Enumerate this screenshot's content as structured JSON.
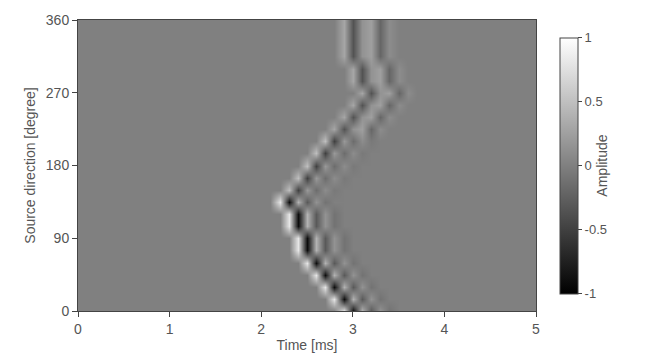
{
  "chart_data": {
    "type": "heatmap",
    "x_label": "Time [ms]",
    "y_label": "Source direction [degree]",
    "colorbar_label": "Amplitude",
    "xlim": [
      0,
      5
    ],
    "xticks": [
      0,
      1,
      2,
      3,
      4,
      5
    ],
    "ylim": [
      0,
      360
    ],
    "yticks": [
      0,
      90,
      180,
      270,
      360
    ],
    "colorbar_range": [
      -1,
      1
    ],
    "colorbar_ticks": [
      -1,
      -0.5,
      0,
      0.5,
      1
    ],
    "x": [
      0,
      0.1,
      0.2,
      0.3,
      0.4,
      0.5,
      0.6,
      0.7,
      0.8,
      0.9,
      1,
      1.1,
      1.2,
      1.3,
      1.4,
      1.5,
      1.6,
      1.7,
      1.8,
      1.9,
      2,
      2.1,
      2.2,
      2.3,
      2.4,
      2.5,
      2.6,
      2.7,
      2.8,
      2.9,
      3,
      3.1,
      3.2,
      3.3,
      3.4,
      3.5,
      3.6,
      3.7,
      3.8,
      3.9,
      4,
      4.1,
      4.2,
      4.3,
      4.4,
      4.5,
      4.6,
      4.7,
      4.8,
      4.9,
      5
    ],
    "y": [
      0,
      15,
      30,
      45,
      60,
      75,
      90,
      105,
      120,
      135,
      150,
      165,
      180,
      195,
      210,
      225,
      240,
      255,
      270,
      285,
      300,
      315,
      330,
      345,
      360
    ],
    "z": [
      [
        0,
        0,
        0,
        0,
        0,
        0,
        0,
        0,
        0,
        0,
        0,
        0,
        0,
        0,
        0,
        0,
        0,
        0,
        0,
        0,
        0,
        0,
        0,
        0,
        0,
        0,
        0,
        0,
        0,
        0.8,
        -0.9,
        0.4,
        -0.3,
        0.15,
        -0.1,
        0,
        0,
        0,
        0,
        0,
        0,
        0,
        0,
        0,
        0,
        0,
        0,
        0,
        0,
        0,
        0
      ],
      [
        0,
        0,
        0,
        0,
        0,
        0,
        0,
        0,
        0,
        0,
        0,
        0,
        0,
        0,
        0,
        0,
        0,
        0,
        0,
        0,
        0,
        0,
        0,
        0,
        0,
        0,
        0,
        0,
        0.8,
        -0.9,
        0.4,
        -0.3,
        0.15,
        -0.1,
        0,
        0,
        0,
        0,
        0,
        0,
        0,
        0,
        0,
        0,
        0,
        0,
        0,
        0,
        0,
        0,
        0
      ],
      [
        0,
        0,
        0,
        0,
        0,
        0,
        0,
        0,
        0,
        0,
        0,
        0,
        0,
        0,
        0,
        0,
        0,
        0,
        0,
        0,
        0,
        0,
        0,
        0,
        0,
        0,
        0,
        0.8,
        -0.9,
        0.4,
        -0.3,
        0.15,
        -0.1,
        0,
        0,
        0,
        0,
        0,
        0,
        0,
        0,
        0,
        0,
        0,
        0,
        0,
        0,
        0,
        0,
        0,
        0
      ],
      [
        0,
        0,
        0,
        0,
        0,
        0,
        0,
        0,
        0,
        0,
        0,
        0,
        0,
        0,
        0,
        0,
        0,
        0,
        0,
        0,
        0,
        0,
        0,
        0,
        0,
        0,
        0.8,
        -0.9,
        0.4,
        -0.3,
        0.15,
        -0.1,
        0,
        0,
        0,
        0,
        0,
        0,
        0,
        0,
        0,
        0,
        0,
        0,
        0,
        0,
        0,
        0,
        0,
        0,
        0
      ],
      [
        0,
        0,
        0,
        0,
        0,
        0,
        0,
        0,
        0,
        0,
        0,
        0,
        0,
        0,
        0,
        0,
        0,
        0,
        0,
        0,
        0,
        0,
        0,
        0,
        0,
        0.8,
        -0.9,
        0.4,
        -0.3,
        0.15,
        -0.1,
        0,
        0,
        0,
        0,
        0,
        0,
        0,
        0,
        0,
        0,
        0,
        0,
        0,
        0,
        0,
        0,
        0,
        0,
        0,
        0
      ],
      [
        0,
        0,
        0,
        0,
        0,
        0,
        0,
        0,
        0,
        0,
        0,
        0,
        0,
        0,
        0,
        0,
        0,
        0,
        0,
        0,
        0,
        0,
        0,
        0,
        0.8,
        -0.9,
        0.4,
        -0.3,
        0.15,
        -0.1,
        0,
        0,
        0,
        0,
        0,
        0,
        0,
        0,
        0,
        0,
        0,
        0,
        0,
        0,
        0,
        0,
        0,
        0,
        0,
        0,
        0
      ],
      [
        0,
        0,
        0,
        0,
        0,
        0,
        0,
        0,
        0,
        0,
        0,
        0,
        0,
        0,
        0,
        0,
        0,
        0,
        0,
        0,
        0,
        0,
        0,
        0,
        0.8,
        -0.9,
        0.4,
        -0.3,
        0.15,
        -0.1,
        0,
        0,
        0,
        0,
        0,
        0,
        0,
        0,
        0,
        0,
        0,
        0,
        0,
        0,
        0,
        0,
        0,
        0,
        0,
        0,
        0
      ],
      [
        0,
        0,
        0,
        0,
        0,
        0,
        0,
        0,
        0,
        0,
        0,
        0,
        0,
        0,
        0,
        0,
        0,
        0,
        0,
        0,
        0,
        0,
        0,
        0.8,
        -0.9,
        0.4,
        -0.3,
        0.15,
        -0.1,
        0,
        0,
        0,
        0,
        0,
        0,
        0,
        0,
        0,
        0,
        0,
        0,
        0,
        0,
        0,
        0,
        0,
        0,
        0,
        0,
        0,
        0
      ],
      [
        0,
        0,
        0,
        0,
        0,
        0,
        0,
        0,
        0,
        0,
        0,
        0,
        0,
        0,
        0,
        0,
        0,
        0,
        0,
        0,
        0,
        0,
        0,
        0.8,
        -0.9,
        0.4,
        -0.3,
        0.15,
        -0.1,
        0,
        0,
        0,
        0,
        0,
        0,
        0,
        0,
        0,
        0,
        0,
        0,
        0,
        0,
        0,
        0,
        0,
        0,
        0,
        0,
        0,
        0
      ],
      [
        0,
        0,
        0,
        0,
        0,
        0,
        0,
        0,
        0,
        0,
        0,
        0,
        0,
        0,
        0,
        0,
        0,
        0,
        0,
        0,
        0,
        0,
        0.8,
        -0.9,
        0.4,
        -0.3,
        0.15,
        -0.1,
        0,
        0,
        0,
        0,
        0,
        0,
        0,
        0,
        0,
        0,
        0,
        0,
        0,
        0,
        0,
        0,
        0,
        0,
        0,
        0,
        0,
        0,
        0
      ],
      [
        0,
        0,
        0,
        0,
        0,
        0,
        0,
        0,
        0,
        0,
        0,
        0,
        0,
        0,
        0,
        0,
        0,
        0,
        0,
        0,
        0,
        0,
        0,
        0.5,
        -0.5,
        0.2,
        -0.15,
        0.1,
        -0.05,
        0,
        0,
        0,
        0,
        0,
        0,
        0,
        0,
        0,
        0,
        0,
        0,
        0,
        0,
        0,
        0,
        0,
        0,
        0,
        0,
        0,
        0
      ],
      [
        0,
        0,
        0,
        0,
        0,
        0,
        0,
        0,
        0,
        0,
        0,
        0,
        0,
        0,
        0,
        0,
        0,
        0,
        0,
        0,
        0,
        0,
        0,
        0,
        0.5,
        -0.5,
        0.2,
        -0.15,
        0.1,
        -0.05,
        0,
        0,
        0,
        0,
        0,
        0,
        0,
        0,
        0,
        0,
        0,
        0,
        0,
        0,
        0,
        0,
        0,
        0,
        0,
        0,
        0
      ],
      [
        0,
        0,
        0,
        0,
        0,
        0,
        0,
        0,
        0,
        0,
        0,
        0,
        0,
        0,
        0,
        0,
        0,
        0,
        0,
        0,
        0,
        0,
        0,
        0,
        0,
        0.5,
        -0.5,
        0.2,
        -0.15,
        0.1,
        -0.05,
        0,
        0,
        0,
        0,
        0,
        0,
        0,
        0,
        0,
        0,
        0,
        0,
        0,
        0,
        0,
        0,
        0,
        0,
        0,
        0
      ],
      [
        0,
        0,
        0,
        0,
        0,
        0,
        0,
        0,
        0,
        0,
        0,
        0,
        0,
        0,
        0,
        0,
        0,
        0,
        0,
        0,
        0,
        0,
        0,
        0,
        0,
        0,
        0.5,
        -0.5,
        0.2,
        -0.15,
        0.1,
        -0.05,
        0,
        0,
        0,
        0,
        0,
        0,
        0,
        0,
        0,
        0,
        0,
        0,
        0,
        0,
        0,
        0,
        0,
        0,
        0
      ],
      [
        0,
        0,
        0,
        0,
        0,
        0,
        0,
        0,
        0,
        0,
        0,
        0,
        0,
        0,
        0,
        0,
        0,
        0,
        0,
        0,
        0,
        0,
        0,
        0,
        0,
        0,
        0,
        0.5,
        -0.5,
        0.2,
        -0.15,
        0.1,
        -0.05,
        0,
        0,
        0,
        0,
        0,
        0,
        0,
        0,
        0,
        0,
        0,
        0,
        0,
        0,
        0,
        0,
        0,
        0
      ],
      [
        0,
        0,
        0,
        0,
        0,
        0,
        0,
        0,
        0,
        0,
        0,
        0,
        0,
        0,
        0,
        0,
        0,
        0,
        0,
        0,
        0,
        0,
        0,
        0,
        0,
        0,
        0,
        0,
        0.3,
        -0.35,
        0.15,
        0.25,
        -0.2,
        0.1,
        0,
        0,
        0,
        0,
        0,
        0,
        0,
        0,
        0,
        0,
        0,
        0,
        0,
        0,
        0,
        0,
        0
      ],
      [
        0,
        0,
        0,
        0,
        0,
        0,
        0,
        0,
        0,
        0,
        0,
        0,
        0,
        0,
        0,
        0,
        0,
        0,
        0,
        0,
        0,
        0,
        0,
        0,
        0,
        0,
        0,
        0,
        0,
        0.3,
        -0.35,
        0.15,
        0.25,
        -0.2,
        0.1,
        0,
        0,
        0,
        0,
        0,
        0,
        0,
        0,
        0,
        0,
        0,
        0,
        0,
        0,
        0,
        0
      ],
      [
        0,
        0,
        0,
        0,
        0,
        0,
        0,
        0,
        0,
        0,
        0,
        0,
        0,
        0,
        0,
        0,
        0,
        0,
        0,
        0,
        0,
        0,
        0,
        0,
        0,
        0,
        0,
        0,
        0,
        0,
        0.3,
        -0.35,
        0.15,
        0.25,
        -0.2,
        0.1,
        0,
        0,
        0,
        0,
        0,
        0,
        0,
        0,
        0,
        0,
        0,
        0,
        0,
        0,
        0
      ],
      [
        0,
        0,
        0,
        0,
        0,
        0,
        0,
        0,
        0,
        0,
        0,
        0,
        0,
        0,
        0,
        0,
        0,
        0,
        0,
        0,
        0,
        0,
        0,
        0,
        0,
        0,
        0,
        0,
        0,
        0,
        0,
        0.3,
        -0.35,
        0.15,
        0.25,
        -0.2,
        0.1,
        0,
        0,
        0,
        0,
        0,
        0,
        0,
        0,
        0,
        0,
        0,
        0,
        0,
        0
      ],
      [
        0,
        0,
        0,
        0,
        0,
        0,
        0,
        0,
        0,
        0,
        0,
        0,
        0,
        0,
        0,
        0,
        0,
        0,
        0,
        0,
        0,
        0,
        0,
        0,
        0,
        0,
        0,
        0,
        0,
        0,
        0.3,
        -0.35,
        0.15,
        0.25,
        -0.2,
        0.1,
        0,
        0,
        0,
        0,
        0,
        0,
        0,
        0,
        0,
        0,
        0,
        0,
        0,
        0,
        0
      ],
      [
        0,
        0,
        0,
        0,
        0,
        0,
        0,
        0,
        0,
        0,
        0,
        0,
        0,
        0,
        0,
        0,
        0,
        0,
        0,
        0,
        0,
        0,
        0,
        0,
        0,
        0,
        0,
        0,
        0,
        0,
        0.3,
        -0.35,
        0.15,
        0.25,
        -0.2,
        0.1,
        0,
        0,
        0,
        0,
        0,
        0,
        0,
        0,
        0,
        0,
        0,
        0,
        0,
        0,
        0
      ],
      [
        0,
        0,
        0,
        0,
        0,
        0,
        0,
        0,
        0,
        0,
        0,
        0,
        0,
        0,
        0,
        0,
        0,
        0,
        0,
        0,
        0,
        0,
        0,
        0,
        0,
        0,
        0,
        0,
        0,
        0.3,
        -0.35,
        0.15,
        0.25,
        -0.2,
        0.1,
        0,
        0,
        0,
        0,
        0,
        0,
        0,
        0,
        0,
        0,
        0,
        0,
        0,
        0,
        0,
        0
      ],
      [
        0,
        0,
        0,
        0,
        0,
        0,
        0,
        0,
        0,
        0,
        0,
        0,
        0,
        0,
        0,
        0,
        0,
        0,
        0,
        0,
        0,
        0,
        0,
        0,
        0,
        0,
        0,
        0,
        0,
        0.3,
        -0.35,
        0.15,
        0.25,
        -0.2,
        0.1,
        0,
        0,
        0,
        0,
        0,
        0,
        0,
        0,
        0,
        0,
        0,
        0,
        0,
        0,
        0,
        0
      ],
      [
        0,
        0,
        0,
        0,
        0,
        0,
        0,
        0,
        0,
        0,
        0,
        0,
        0,
        0,
        0,
        0,
        0,
        0,
        0,
        0,
        0,
        0,
        0,
        0,
        0,
        0,
        0,
        0,
        0,
        0.3,
        -0.35,
        0.15,
        0.25,
        -0.2,
        0.1,
        0,
        0,
        0,
        0,
        0,
        0,
        0,
        0,
        0,
        0,
        0,
        0,
        0,
        0,
        0,
        0
      ],
      [
        0,
        0,
        0,
        0,
        0,
        0,
        0,
        0,
        0,
        0,
        0,
        0,
        0,
        0,
        0,
        0,
        0,
        0,
        0,
        0,
        0,
        0,
        0,
        0,
        0,
        0,
        0,
        0,
        0,
        0.3,
        -0.35,
        0.15,
        0.25,
        -0.2,
        0.1,
        0,
        0,
        0,
        0,
        0,
        0,
        0,
        0,
        0,
        0,
        0,
        0,
        0,
        0,
        0,
        0
      ]
    ]
  }
}
